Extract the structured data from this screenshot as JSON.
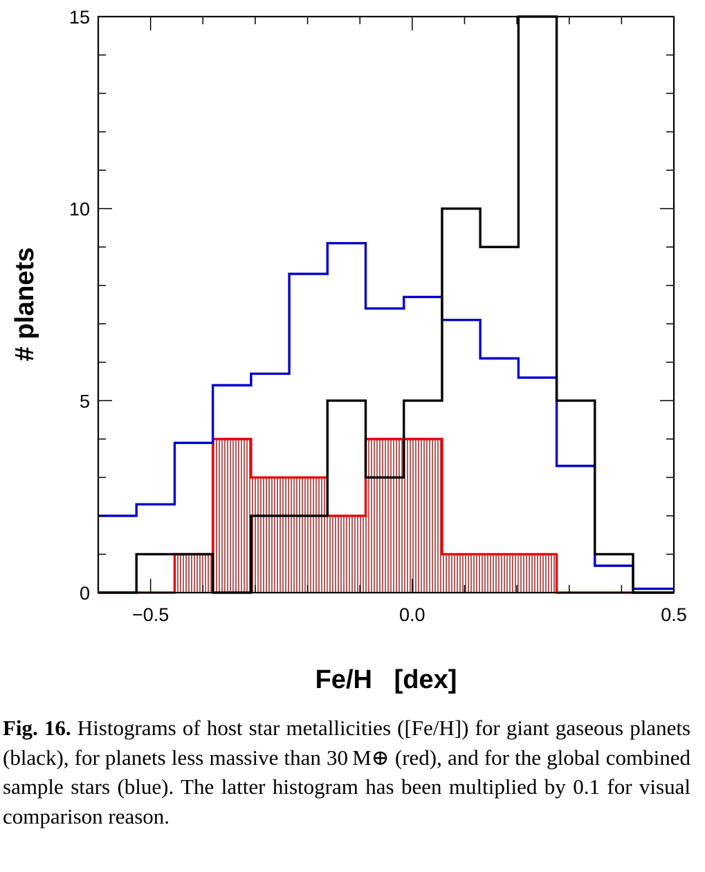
{
  "chart_data": {
    "type": "histogram",
    "xlabel": "Fe/H   [dex]",
    "ylabel": "# planets",
    "xlim": [
      -0.6,
      0.5
    ],
    "ylim": [
      0,
      15
    ],
    "x_ticks": [
      -0.5,
      0.0,
      0.5
    ],
    "x_tick_labels": [
      "−0.5",
      "0.0",
      "0.5"
    ],
    "y_ticks": [
      0,
      5,
      10,
      15
    ],
    "y_tick_labels": [
      "0",
      "5",
      "10",
      "15"
    ],
    "bin_edges": [
      -0.6,
      -0.527,
      -0.454,
      -0.381,
      -0.308,
      -0.235,
      -0.162,
      -0.089,
      -0.016,
      0.057,
      0.13,
      0.203,
      0.276,
      0.349,
      0.422,
      0.5
    ],
    "series": [
      {
        "color": "#0000cc",
        "style": "step",
        "values": [
          2.0,
          2.3,
          3.9,
          5.4,
          5.7,
          8.3,
          9.1,
          7.4,
          7.7,
          7.1,
          6.1,
          5.6,
          3.3,
          0.7,
          0.1
        ]
      },
      {
        "color": "#000000",
        "style": "step",
        "values": [
          0,
          1,
          1,
          0,
          2,
          2,
          5,
          3,
          5,
          10,
          9,
          15,
          5,
          1,
          0
        ]
      },
      {
        "color": "#ee0000",
        "fill": "#8b0000",
        "style": "hatched",
        "values": [
          0,
          0,
          1,
          4,
          3,
          3,
          2,
          4,
          4,
          1,
          1,
          1,
          0,
          0,
          0
        ]
      }
    ]
  },
  "caption": {
    "label": "Fig. 16.",
    "text": " Histograms of host star metallicities ([Fe/H]) for giant gaseous planets (black), for planets less massive than 30 M⊕ (red), and for the global combined sample stars (blue). The latter histogram has been multiplied by 0.1 for visual comparison reason."
  }
}
